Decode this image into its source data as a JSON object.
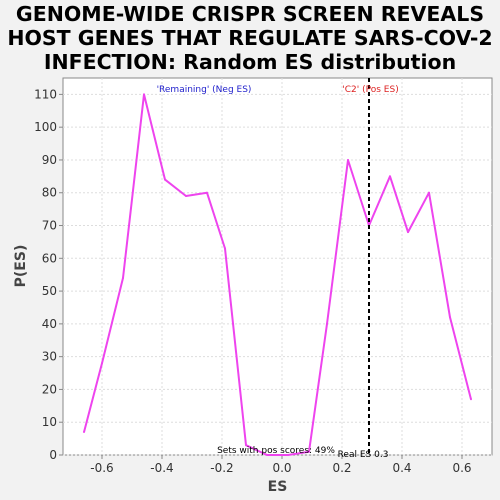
{
  "chart_data": {
    "type": "line",
    "title_lines": [
      "GENOME-WIDE CRISPR SCREEN REVEALS",
      "HOST GENES THAT REGULATE SARS-COV-2",
      "INFECTION: Random ES distribution"
    ],
    "xlabel": "ES",
    "ylabel": "P(ES)",
    "xlim": [
      -0.73,
      0.7
    ],
    "ylim": [
      0,
      115
    ],
    "xticks": [
      -0.6,
      -0.4,
      -0.2,
      0.0,
      0.2,
      0.4,
      0.6
    ],
    "xtick_labels": [
      "-0.6",
      "-0.4",
      "-0.2",
      "0.0",
      "0.2",
      "0.4",
      "0.6"
    ],
    "yticks": [
      0,
      10,
      20,
      30,
      40,
      50,
      60,
      70,
      80,
      90,
      100,
      110
    ],
    "ytick_labels": [
      "0",
      "10",
      "20",
      "30",
      "40",
      "50",
      "60",
      "70",
      "80",
      "90",
      "100",
      "110"
    ],
    "grid": true,
    "series": [
      {
        "color": "#ee44ee",
        "x": [
          -0.66,
          -0.6,
          -0.53,
          -0.46,
          -0.39,
          -0.32,
          -0.25,
          -0.19,
          -0.12,
          -0.05,
          0.02,
          0.09,
          0.15,
          0.22,
          0.29,
          0.36,
          0.42,
          0.49,
          0.56,
          0.63
        ],
        "y": [
          7,
          28,
          54,
          110,
          84,
          79,
          80,
          63,
          3,
          0,
          0,
          1,
          40,
          90,
          70,
          85,
          68,
          80,
          42,
          17
        ]
      }
    ],
    "real_es": {
      "x": 0.29,
      "label": "Real ES 0.3"
    },
    "annotations": {
      "neg_label": "'Remaining' (Neg ES)",
      "neg_color": "#2222cc",
      "pos_label": "'C2' (Pos ES)",
      "pos_color": "#dd2222",
      "pos_scores_label": "Sets with pos scores: 49%"
    }
  }
}
